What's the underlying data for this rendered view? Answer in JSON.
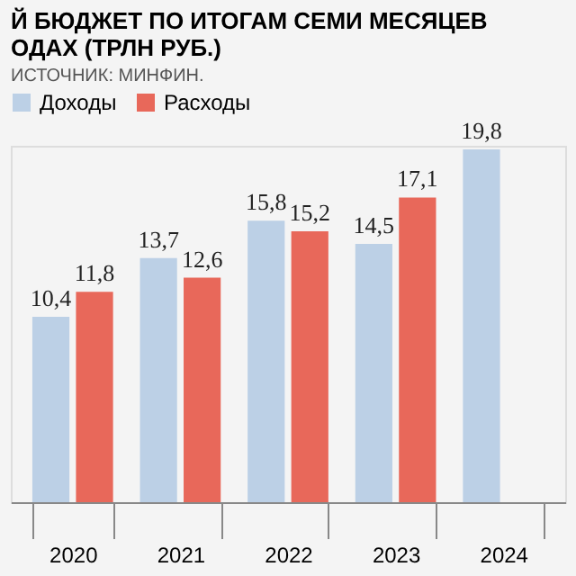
{
  "chart_data": {
    "type": "bar",
    "title": "Й БЮДЖЕТ ПО ИТОГАМ СЕМИ МЕСЯЦЕВ\nОДАХ (ТРЛН РУБ.)",
    "annotations": [
      "ИСТОЧНИК: МИНФИН."
    ],
    "categories": [
      "2020",
      "2021",
      "2022",
      "2023",
      "2024"
    ],
    "series": [
      {
        "name": "Доходы",
        "color": "#bcd0e6",
        "values": [
          10.4,
          13.7,
          15.8,
          14.5,
          19.8
        ],
        "value_labels": [
          "10,4",
          "13,7",
          "15,8",
          "14,5",
          "19,8"
        ]
      },
      {
        "name": "Расходы",
        "color": "#e8685a",
        "values": [
          11.8,
          12.6,
          15.2,
          17.1,
          null
        ],
        "value_labels": [
          "11,8",
          "12,6",
          "15,2",
          "17,1",
          null
        ]
      }
    ],
    "legend": "top left",
    "grid": false
  }
}
